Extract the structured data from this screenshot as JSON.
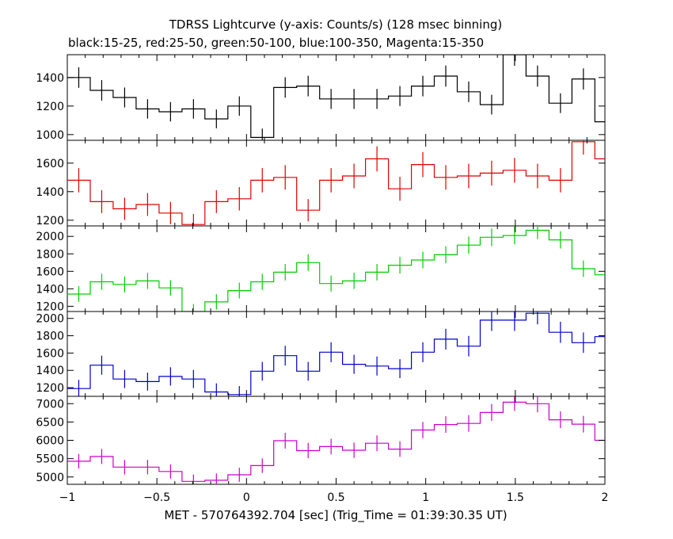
{
  "chart_data": {
    "type": "line",
    "title": "TDRSS Lightcurve (y-axis: Counts/s) (128 msec binning)",
    "subtitle": "black:15-25, red:25-50, green:50-100, blue:100-350, Magenta:15-350",
    "xlabel": "MET - 570764392.704 [sec] (Trig_Time = 01:39:30.35 UT)",
    "xlim": [
      -1,
      2
    ],
    "x_ticks": [
      -1,
      -0.5,
      0,
      0.5,
      1,
      1.5,
      2
    ],
    "x_tick_labels": [
      "−1",
      "−0.5",
      "0",
      "0.5",
      "1",
      "1.5",
      "2"
    ],
    "bin_width": 0.128,
    "bin_starts": [
      -1.0,
      -0.872,
      -0.744,
      -0.616,
      -0.488,
      -0.36,
      -0.232,
      -0.104,
      0.024,
      0.152,
      0.28,
      0.408,
      0.536,
      0.664,
      0.792,
      0.92,
      1.048,
      1.176,
      1.304,
      1.432,
      1.56,
      1.688,
      1.816,
      1.944
    ],
    "panels": [
      {
        "series_color": "#000000",
        "ylim": [
          960,
          1560
        ],
        "y_ticks": [
          1000,
          1200,
          1400
        ],
        "y_tick_labels": [
          "1000",
          "1200",
          "1400"
        ],
        "values": [
          1400,
          1310,
          1260,
          1180,
          1160,
          1180,
          1110,
          1200,
          980,
          1330,
          1340,
          1250,
          1250,
          1250,
          1270,
          1340,
          1410,
          1300,
          1210,
          1560,
          1410,
          1220,
          1390,
          1090
        ],
        "errors": [
          72,
          72,
          70,
          68,
          68,
          68,
          66,
          68,
          62,
          72,
          72,
          70,
          70,
          70,
          70,
          72,
          74,
          72,
          69,
          78,
          74,
          69,
          74,
          66
        ]
      },
      {
        "series_color": "#dd0000",
        "ylim": [
          1160,
          1760
        ],
        "y_ticks": [
          1200,
          1400,
          1600
        ],
        "y_tick_labels": [
          "1200",
          "1400",
          "1600"
        ],
        "values": [
          1480,
          1330,
          1280,
          1310,
          1250,
          1170,
          1330,
          1350,
          1480,
          1500,
          1270,
          1480,
          1510,
          1630,
          1420,
          1590,
          1500,
          1510,
          1530,
          1550,
          1510,
          1480,
          1750,
          1630
        ],
        "errors": [
          85,
          80,
          78,
          80,
          78,
          74,
          80,
          82,
          85,
          86,
          78,
          85,
          86,
          88,
          84,
          88,
          86,
          86,
          87,
          87,
          86,
          85,
          90,
          88
        ]
      },
      {
        "series_color": "#00cc00",
        "ylim": [
          1140,
          2120
        ],
        "y_ticks": [
          1200,
          1400,
          1600,
          1800,
          2000
        ],
        "y_tick_labels": [
          "1200",
          "1400",
          "1600",
          "1800",
          "2000"
        ],
        "values": [
          1340,
          1480,
          1450,
          1490,
          1410,
          1140,
          1250,
          1380,
          1480,
          1590,
          1700,
          1460,
          1490,
          1590,
          1670,
          1730,
          1790,
          1900,
          1990,
          2010,
          2070,
          1960,
          1630,
          1560
        ],
        "errors": [
          90,
          92,
          91,
          92,
          90,
          86,
          88,
          90,
          92,
          94,
          96,
          92,
          92,
          94,
          95,
          96,
          97,
          99,
          100,
          100,
          101,
          99,
          94,
          93
        ]
      },
      {
        "series_color": "#0000cc",
        "ylim": [
          1100,
          2080
        ],
        "y_ticks": [
          1200,
          1400,
          1600,
          1800,
          2000
        ],
        "y_tick_labels": [
          "1200",
          "1400",
          "1600",
          "1800",
          "2000"
        ],
        "values": [
          1190,
          1460,
          1300,
          1270,
          1330,
          1300,
          1150,
          1120,
          1390,
          1570,
          1390,
          1610,
          1470,
          1450,
          1420,
          1610,
          1760,
          1680,
          1980,
          1980,
          2060,
          1840,
          1720,
          1790
        ],
        "errors": [
          100,
          110,
          105,
          104,
          106,
          105,
          100,
          98,
          108,
          114,
          108,
          115,
          110,
          110,
          109,
          115,
          120,
          118,
          125,
          125,
          128,
          122,
          118,
          120
        ]
      },
      {
        "series_color": "#cc00cc",
        "ylim": [
          4800,
          7200
        ],
        "y_ticks": [
          5000,
          5500,
          6000,
          6500,
          7000
        ],
        "y_tick_labels": [
          "5000",
          "5500",
          "6000",
          "6500",
          "7000"
        ],
        "values": [
          5430,
          5560,
          5270,
          5270,
          5150,
          4880,
          4910,
          5060,
          5310,
          5990,
          5720,
          5830,
          5730,
          5920,
          5760,
          6280,
          6430,
          6460,
          6760,
          7040,
          7000,
          6560,
          6440,
          6000
        ],
        "errors": [
          200,
          205,
          198,
          198,
          195,
          188,
          188,
          192,
          198,
          215,
          210,
          212,
          210,
          214,
          211,
          222,
          226,
          227,
          232,
          238,
          237,
          228,
          226,
          216
        ]
      }
    ]
  }
}
